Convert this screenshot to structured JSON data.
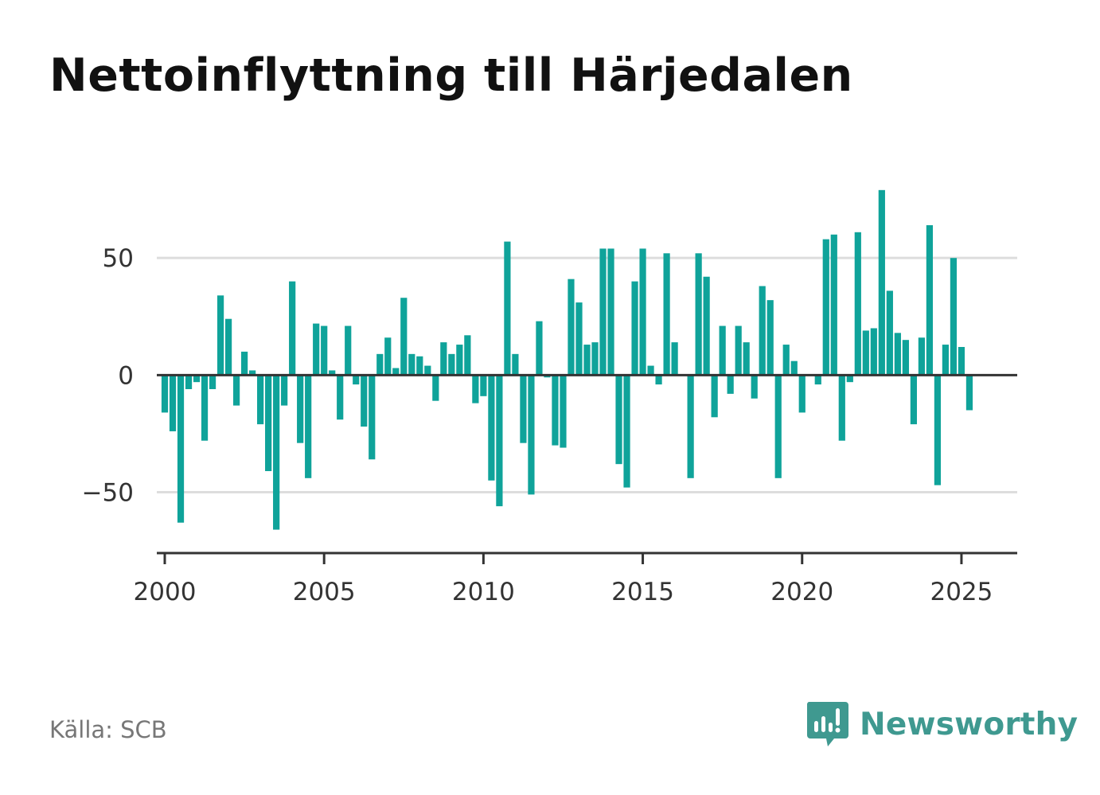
{
  "title": "Nettoinflyttning till Härjedalen",
  "source": "Källa: SCB",
  "brand": {
    "name": "Newsworthy",
    "logo_icon": "newsworthy-logo-icon",
    "color": "#3f9990"
  },
  "colors": {
    "bar": "#0fa39a",
    "zero_line": "#333333",
    "grid": "#dddddd",
    "axis": "#333333"
  },
  "chart_data": {
    "type": "bar",
    "frequency": "quarterly",
    "x_start": 2000,
    "xlim": [
      1999.75,
      2026.75
    ],
    "ylim": [
      -76,
      82
    ],
    "grid": true,
    "x_ticks": [
      2000,
      2005,
      2010,
      2015,
      2020,
      2025
    ],
    "x_tick_labels": [
      "2000",
      "2005",
      "2010",
      "2015",
      "2020",
      "2025"
    ],
    "y_ticks": [
      -50,
      0,
      50
    ],
    "y_tick_labels": [
      "−50",
      "0",
      "50"
    ],
    "values": [
      -16,
      -24,
      -63,
      -6,
      -3,
      -28,
      -6,
      34,
      24,
      -13,
      10,
      2,
      -21,
      -41,
      -66,
      -13,
      40,
      -29,
      -44,
      22,
      21,
      2,
      -19,
      21,
      -4,
      -22,
      -36,
      9,
      16,
      3,
      33,
      9,
      8,
      4,
      -11,
      14,
      9,
      13,
      17,
      -12,
      -9,
      -45,
      -56,
      57,
      9,
      -29,
      -51,
      23,
      -1,
      -30,
      -31,
      41,
      31,
      13,
      14,
      54,
      54,
      -38,
      -48,
      40,
      54,
      4,
      -4,
      52,
      14,
      0,
      -44,
      52,
      42,
      -18,
      21,
      -8,
      21,
      14,
      -10,
      38,
      32,
      -44,
      13,
      6,
      -16,
      0,
      -4,
      58,
      60,
      -28,
      -3,
      61,
      19,
      20,
      79,
      36,
      18,
      15,
      -21,
      16,
      64,
      -47,
      13,
      50,
      12,
      -15
    ]
  }
}
